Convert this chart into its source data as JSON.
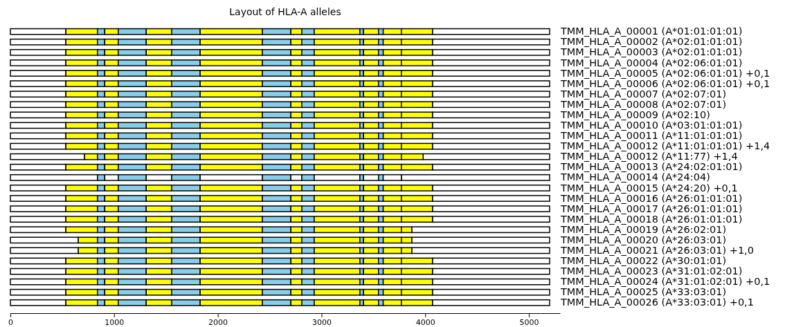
{
  "chart_data": {
    "type": "bar",
    "orientation": "horizontal",
    "title": "Layout of HLA-A alleles",
    "categories": [
      "TMM_HLA_A_00001 (A*01:01:01:01)",
      "TMM_HLA_A_00002 (A*02:01:01:01)",
      "TMM_HLA_A_00003 (A*02:01:01:01)",
      "TMM_HLA_A_00004 (A*02:06:01:01)",
      "TMM_HLA_A_00005 (A*02:06:01:01) +0,1",
      "TMM_HLA_A_00006 (A*02:06:01:01) +0,1",
      "TMM_HLA_A_00007 (A*02:07:01)",
      "TMM_HLA_A_00008 (A*02:07:01)",
      "TMM_HLA_A_00009 (A*02:10)",
      "TMM_HLA_A_00010 (A*03:01:01:01)",
      "TMM_HLA_A_00011 (A*11:01:01:01)",
      "TMM_HLA_A_00012 (A*11:01:01:01) +1,4",
      "TMM_HLA_A_00012 (A*11:77) +1,4",
      "TMM_HLA_A_00013 (A*24:02:01:01)",
      "TMM_HLA_A_00014 (A*24:04)",
      "TMM_HLA_A_00015 (A*24:20) +0,1",
      "TMM_HLA_A_00016 (A*26:01:01:01)",
      "TMM_HLA_A_00017 (A*26:01:01:01)",
      "TMM_HLA_A_00018 (A*26:01:01:01)",
      "TMM_HLA_A_00019 (A*26:02:01)",
      "TMM_HLA_A_00020 (A*26:03:01)",
      "TMM_HLA_A_00021 (A*26:03:01) +1,0",
      "TMM_HLA_A_00022 (A*30:01:01)",
      "TMM_HLA_A_00023 (A*31:01:02:01)",
      "TMM_HLA_A_00024 (A*31:01:02:01) +0,1",
      "TMM_HLA_A_00025 (A*33:03:01)",
      "TMM_HLA_A_00026 (A*33:03:01) +0,1"
    ],
    "xlim": [
      0,
      5300
    ],
    "xticks": [
      0,
      1000,
      2000,
      3000,
      4000,
      5000
    ],
    "series": [
      {
        "color": "#ffffff",
        "base": [
          0,
          0,
          0,
          0,
          0,
          0,
          0,
          0,
          0,
          0,
          0,
          0,
          0,
          0,
          0,
          0,
          0,
          0,
          0,
          0,
          0,
          0,
          0,
          0,
          0,
          0,
          0
        ],
        "values": [
          535,
          535,
          535,
          535,
          535,
          535,
          535,
          535,
          535,
          535,
          535,
          535,
          715,
          535,
          840,
          535,
          535,
          535,
          535,
          535,
          655,
          655,
          535,
          535,
          535,
          535,
          535
        ]
      },
      {
        "color": "#ffffff",
        "base": [
          4070,
          4070,
          4070,
          4070,
          4070,
          4070,
          4070,
          4070,
          4070,
          4070,
          4070,
          4070,
          3980,
          4070,
          3770,
          4070,
          4070,
          4070,
          4070,
          3870,
          3870,
          3870,
          4070,
          4070,
          4070,
          4070,
          4070
        ],
        "values": [
          1130,
          1130,
          1130,
          1130,
          1130,
          1130,
          1130,
          1130,
          1130,
          1130,
          1130,
          1130,
          1220,
          1130,
          1430,
          1130,
          1130,
          1130,
          1130,
          1330,
          1330,
          1330,
          1130,
          1130,
          1130,
          1130,
          1130
        ]
      },
      {
        "color": "#ffff00",
        "base": [
          535,
          535,
          535,
          535,
          535,
          535,
          535,
          535,
          535,
          535,
          535,
          535,
          715,
          535,
          null,
          535,
          535,
          535,
          535,
          535,
          655,
          655,
          535,
          535,
          535,
          535,
          535
        ],
        "values": [
          305,
          305,
          305,
          305,
          305,
          305,
          305,
          305,
          305,
          305,
          305,
          305,
          125,
          305,
          null,
          305,
          305,
          305,
          305,
          305,
          185,
          185,
          305,
          305,
          305,
          305,
          305
        ]
      },
      {
        "color": "#87ceeb",
        "base": [
          840,
          840,
          840,
          840,
          840,
          840,
          840,
          840,
          840,
          840,
          840,
          840,
          840,
          840,
          840,
          840,
          840,
          840,
          840,
          840,
          840,
          840,
          840,
          840,
          840,
          840,
          840
        ],
        "values": [
          70,
          70,
          70,
          70,
          70,
          70,
          70,
          70,
          70,
          70,
          70,
          70,
          70,
          70,
          70,
          70,
          70,
          70,
          70,
          70,
          70,
          70,
          70,
          70,
          70,
          70,
          70
        ]
      },
      {
        "colors": [
          "#ffff00",
          "#ffff00",
          "#ffff00",
          "#ffff00",
          "#ffff00",
          "#ffff00",
          "#ffff00",
          "#ffff00",
          "#ffff00",
          "#ffff00",
          "#ffff00",
          "#ffff00",
          "#ffff00",
          "#ffff00",
          "#ffffff",
          "#ffff00",
          "#ffff00",
          "#ffff00",
          "#ffff00",
          "#ffff00",
          "#ffff00",
          "#ffff00",
          "#ffff00",
          "#ffff00",
          "#ffff00",
          "#ffff00",
          "#ffff00"
        ],
        "base": [
          910,
          910,
          910,
          910,
          910,
          910,
          910,
          910,
          910,
          910,
          910,
          910,
          910,
          910,
          910,
          910,
          910,
          910,
          910,
          910,
          910,
          910,
          910,
          910,
          910,
          910,
          910
        ],
        "values": [
          130,
          130,
          130,
          130,
          130,
          130,
          130,
          130,
          130,
          130,
          130,
          130,
          130,
          130,
          130,
          130,
          130,
          130,
          130,
          130,
          130,
          130,
          130,
          130,
          130,
          130,
          130
        ]
      },
      {
        "color": "#87ceeb",
        "base": [
          1040,
          1040,
          1040,
          1040,
          1040,
          1040,
          1040,
          1040,
          1040,
          1040,
          1040,
          1040,
          1040,
          1040,
          1040,
          1040,
          1040,
          1040,
          1040,
          1040,
          1040,
          1040,
          1040,
          1040,
          1040,
          1040,
          1040
        ],
        "values": [
          270,
          270,
          270,
          270,
          270,
          270,
          270,
          270,
          270,
          270,
          270,
          270,
          270,
          270,
          270,
          270,
          270,
          270,
          270,
          270,
          270,
          270,
          270,
          270,
          270,
          270,
          270
        ]
      },
      {
        "colors": [
          "#ffff00",
          "#ffff00",
          "#ffff00",
          "#ffff00",
          "#ffff00",
          "#ffff00",
          "#ffff00",
          "#ffff00",
          "#ffff00",
          "#ffff00",
          "#ffff00",
          "#ffff00",
          "#ffff00",
          "#ffff00",
          "#ffffff",
          "#ffff00",
          "#ffff00",
          "#ffff00",
          "#ffff00",
          "#ffff00",
          "#ffff00",
          "#ffff00",
          "#ffff00",
          "#ffff00",
          "#ffff00",
          "#ffff00",
          "#ffff00"
        ],
        "base": [
          1310,
          1310,
          1310,
          1310,
          1310,
          1310,
          1310,
          1310,
          1310,
          1310,
          1310,
          1310,
          1310,
          1310,
          1310,
          1310,
          1310,
          1310,
          1310,
          1310,
          1310,
          1310,
          1310,
          1310,
          1310,
          1310,
          1310
        ],
        "values": [
          245,
          245,
          245,
          245,
          245,
          245,
          245,
          245,
          245,
          245,
          245,
          245,
          245,
          245,
          245,
          245,
          245,
          245,
          245,
          245,
          245,
          245,
          245,
          245,
          245,
          245,
          245
        ]
      },
      {
        "color": "#87ceeb",
        "base": [
          1555,
          1555,
          1555,
          1555,
          1555,
          1555,
          1555,
          1555,
          1555,
          1555,
          1555,
          1555,
          1555,
          1555,
          1555,
          1555,
          1555,
          1555,
          1555,
          1555,
          1555,
          1555,
          1555,
          1555,
          1555,
          1555,
          1555
        ],
        "values": [
          275,
          275,
          275,
          275,
          275,
          275,
          275,
          275,
          275,
          275,
          275,
          275,
          275,
          275,
          275,
          275,
          275,
          275,
          275,
          275,
          275,
          275,
          275,
          275,
          275,
          275,
          275
        ]
      },
      {
        "colors": [
          "#ffff00",
          "#ffff00",
          "#ffff00",
          "#ffff00",
          "#ffff00",
          "#ffff00",
          "#ffff00",
          "#ffff00",
          "#ffff00",
          "#ffff00",
          "#ffff00",
          "#ffff00",
          "#ffff00",
          "#ffff00",
          "#ffffff",
          "#ffff00",
          "#ffff00",
          "#ffff00",
          "#ffff00",
          "#ffff00",
          "#ffff00",
          "#ffff00",
          "#ffff00",
          "#ffff00",
          "#ffff00",
          "#ffff00",
          "#ffff00"
        ],
        "base": [
          1830,
          1830,
          1830,
          1830,
          1830,
          1830,
          1830,
          1830,
          1830,
          1830,
          1830,
          1830,
          1830,
          1830,
          1830,
          1830,
          1830,
          1830,
          1830,
          1830,
          1830,
          1830,
          1830,
          1830,
          1830,
          1830,
          1830
        ],
        "values": [
          600,
          600,
          600,
          600,
          600,
          600,
          600,
          600,
          600,
          600,
          600,
          600,
          600,
          600,
          600,
          600,
          600,
          600,
          600,
          600,
          600,
          600,
          600,
          600,
          600,
          600,
          600
        ]
      },
      {
        "color": "#87ceeb",
        "base": [
          2430,
          2430,
          2430,
          2430,
          2430,
          2430,
          2430,
          2430,
          2430,
          2430,
          2430,
          2430,
          2430,
          2430,
          2430,
          2430,
          2430,
          2430,
          2430,
          2430,
          2430,
          2430,
          2430,
          2430,
          2430,
          2430,
          2430
        ],
        "values": [
          275,
          275,
          275,
          275,
          275,
          275,
          275,
          275,
          275,
          275,
          275,
          275,
          275,
          275,
          275,
          275,
          275,
          275,
          275,
          275,
          275,
          275,
          275,
          275,
          275,
          275,
          275
        ]
      },
      {
        "colors": [
          "#ffff00",
          "#ffff00",
          "#ffff00",
          "#ffff00",
          "#ffff00",
          "#ffff00",
          "#ffff00",
          "#ffff00",
          "#ffff00",
          "#ffff00",
          "#ffff00",
          "#ffff00",
          "#ffff00",
          "#ffff00",
          "#ffffff",
          "#ffff00",
          "#ffff00",
          "#ffff00",
          "#ffff00",
          "#ffff00",
          "#ffff00",
          "#ffff00",
          "#ffff00",
          "#ffff00",
          "#ffff00",
          "#ffff00",
          "#ffff00"
        ],
        "base": [
          2705,
          2705,
          2705,
          2705,
          2705,
          2705,
          2705,
          2705,
          2705,
          2705,
          2705,
          2705,
          2705,
          2705,
          2705,
          2705,
          2705,
          2705,
          2705,
          2705,
          2705,
          2705,
          2705,
          2705,
          2705,
          2705,
          2705
        ],
        "values": [
          105,
          105,
          105,
          105,
          105,
          105,
          105,
          105,
          105,
          105,
          105,
          105,
          105,
          105,
          105,
          105,
          105,
          105,
          105,
          105,
          105,
          105,
          105,
          105,
          105,
          105,
          105
        ]
      },
      {
        "color": "#87ceeb",
        "base": [
          2810,
          2810,
          2810,
          2810,
          2810,
          2810,
          2810,
          2810,
          2810,
          2810,
          2810,
          2810,
          2810,
          2810,
          2810,
          2810,
          2810,
          2810,
          2810,
          2810,
          2810,
          2810,
          2810,
          2810,
          2810,
          2810,
          2810
        ],
        "values": [
          120,
          120,
          120,
          120,
          120,
          120,
          120,
          120,
          120,
          120,
          120,
          120,
          120,
          120,
          120,
          120,
          120,
          120,
          120,
          120,
          120,
          120,
          120,
          120,
          120,
          120,
          120
        ]
      },
      {
        "colors": [
          "#ffff00",
          "#ffff00",
          "#ffff00",
          "#ffff00",
          "#ffff00",
          "#ffff00",
          "#ffff00",
          "#ffff00",
          "#ffff00",
          "#ffff00",
          "#ffff00",
          "#ffff00",
          "#ffff00",
          "#ffff00",
          "#ffffff",
          "#ffff00",
          "#ffff00",
          "#ffff00",
          "#ffff00",
          "#ffff00",
          "#ffff00",
          "#ffff00",
          "#ffff00",
          "#ffff00",
          "#ffff00",
          "#ffff00",
          "#ffff00"
        ],
        "base": [
          2930,
          2930,
          2930,
          2930,
          2930,
          2930,
          2930,
          2930,
          2930,
          2930,
          2930,
          2930,
          2930,
          2930,
          2930,
          2930,
          2930,
          2930,
          2930,
          2930,
          2930,
          2930,
          2930,
          2930,
          2930,
          2930,
          2930
        ],
        "values": [
          440,
          440,
          440,
          440,
          440,
          440,
          440,
          440,
          440,
          440,
          440,
          440,
          440,
          440,
          440,
          440,
          440,
          440,
          440,
          440,
          440,
          440,
          440,
          440,
          440,
          440,
          440
        ]
      },
      {
        "color": "#87ceeb",
        "base": [
          3370,
          3370,
          3370,
          3370,
          3370,
          3370,
          3370,
          3370,
          3370,
          3370,
          3370,
          3370,
          3370,
          3370,
          3370,
          3370,
          3370,
          3370,
          3370,
          3370,
          3370,
          3370,
          3370,
          3370,
          3370,
          3370,
          3370
        ],
        "values": [
          35,
          35,
          35,
          35,
          35,
          35,
          35,
          35,
          35,
          35,
          35,
          35,
          35,
          35,
          35,
          35,
          35,
          35,
          35,
          35,
          35,
          35,
          35,
          35,
          35,
          35,
          35
        ]
      },
      {
        "colors": [
          "#ffff00",
          "#ffff00",
          "#ffff00",
          "#ffff00",
          "#ffff00",
          "#ffff00",
          "#ffff00",
          "#ffff00",
          "#ffff00",
          "#ffff00",
          "#ffff00",
          "#ffff00",
          "#ffff00",
          "#ffff00",
          "#ffffff",
          "#ffff00",
          "#ffff00",
          "#ffff00",
          "#ffff00",
          "#ffff00",
          "#ffff00",
          "#ffff00",
          "#ffff00",
          "#ffff00",
          "#ffff00",
          "#ffff00",
          "#ffff00"
        ],
        "base": [
          3405,
          3405,
          3405,
          3405,
          3405,
          3405,
          3405,
          3405,
          3405,
          3405,
          3405,
          3405,
          3405,
          3405,
          3405,
          3405,
          3405,
          3405,
          3405,
          3405,
          3405,
          3405,
          3405,
          3405,
          3405,
          3405,
          3405
        ],
        "values": [
          145,
          145,
          145,
          145,
          145,
          145,
          145,
          145,
          145,
          145,
          145,
          145,
          145,
          145,
          145,
          145,
          145,
          145,
          145,
          145,
          145,
          145,
          145,
          145,
          145,
          145,
          145
        ]
      },
      {
        "color": "#87ceeb",
        "base": [
          3550,
          3550,
          3550,
          3550,
          3550,
          3550,
          3550,
          3550,
          3550,
          3550,
          3550,
          3550,
          3550,
          3550,
          3550,
          3550,
          3550,
          3550,
          3550,
          3550,
          3550,
          3550,
          3550,
          3550,
          3550,
          3550,
          3550
        ],
        "values": [
          45,
          45,
          45,
          45,
          45,
          45,
          45,
          45,
          45,
          45,
          45,
          45,
          45,
          45,
          45,
          45,
          45,
          45,
          45,
          45,
          45,
          45,
          45,
          45,
          45,
          45,
          45
        ]
      },
      {
        "colors": [
          "#ffff00",
          "#ffff00",
          "#ffff00",
          "#ffff00",
          "#ffff00",
          "#ffff00",
          "#ffff00",
          "#ffff00",
          "#ffff00",
          "#ffff00",
          "#ffff00",
          "#ffff00",
          "#ffff00",
          "#ffff00",
          "#ffffff",
          "#ffff00",
          "#ffff00",
          "#ffff00",
          "#ffff00",
          "#ffff00",
          "#ffff00",
          "#ffff00",
          "#ffff00",
          "#ffff00",
          "#ffff00",
          "#ffff00",
          "#ffff00"
        ],
        "base": [
          3595,
          3595,
          3595,
          3595,
          3595,
          3595,
          3595,
          3595,
          3595,
          3595,
          3595,
          3595,
          3595,
          3595,
          3595,
          3595,
          3595,
          3595,
          3595,
          3595,
          3595,
          3595,
          3595,
          3595,
          3595,
          3595,
          3595
        ],
        "values": [
          175,
          175,
          175,
          175,
          175,
          175,
          175,
          175,
          175,
          175,
          175,
          175,
          175,
          175,
          175,
          175,
          175,
          175,
          175,
          175,
          175,
          175,
          175,
          175,
          175,
          175,
          175
        ]
      },
      {
        "color": "#ffff00",
        "base": [
          3770,
          3770,
          3770,
          3770,
          3770,
          3770,
          3770,
          3770,
          3770,
          3770,
          3770,
          3770,
          3770,
          3770,
          null,
          3770,
          3770,
          3770,
          3770,
          3770,
          3770,
          3770,
          3770,
          3770,
          3770,
          3770,
          3770
        ],
        "values": [
          300,
          300,
          300,
          300,
          300,
          300,
          300,
          300,
          300,
          300,
          300,
          300,
          210,
          300,
          null,
          300,
          300,
          300,
          300,
          100,
          100,
          100,
          300,
          300,
          300,
          300,
          300
        ]
      }
    ]
  }
}
